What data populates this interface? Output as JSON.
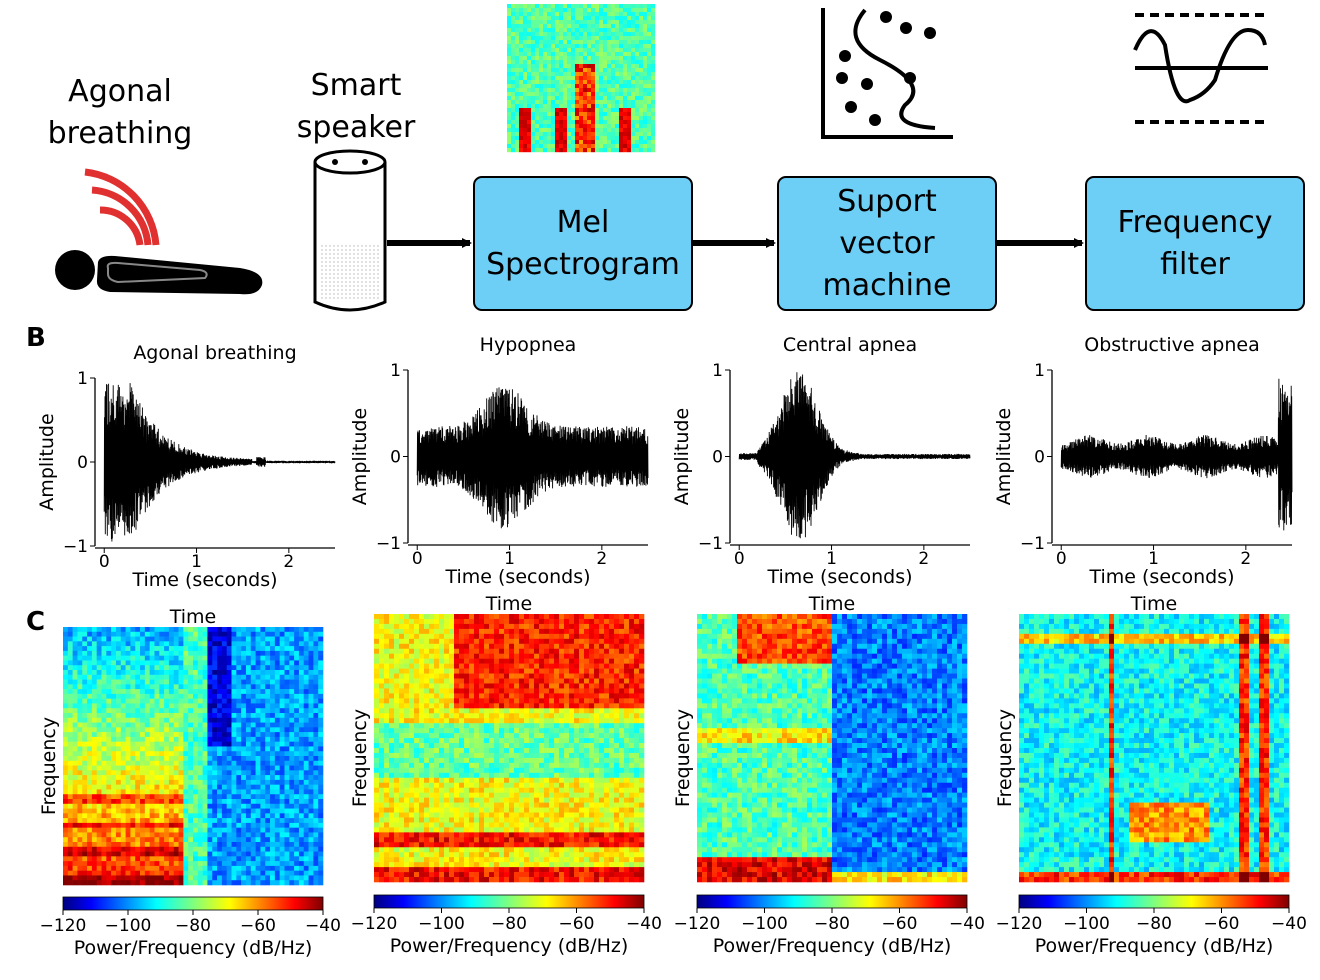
{
  "diagram": {
    "subject_label": [
      "Agonal",
      "breathing"
    ],
    "device_label": [
      "Smart",
      "speaker"
    ],
    "boxes": [
      [
        "Mel",
        "Spectrogram"
      ],
      [
        "Suport",
        "vector",
        "machine"
      ],
      [
        "Frequency",
        "filter"
      ]
    ]
  },
  "panel_labels": [
    "B",
    "C"
  ],
  "waveforms": [
    {
      "title": "Agonal breathing",
      "xlabel": "Time (seconds)",
      "ylabel": "Amplitude",
      "xlim": [
        -0.1,
        2.5
      ],
      "ylim": [
        -1,
        1
      ],
      "xticks": [
        0,
        1,
        2
      ],
      "yticks": [
        {
          "value": -1,
          "label": "−1"
        },
        0,
        1
      ]
    },
    {
      "title": "Hypopnea",
      "xlabel": "Time (seconds)",
      "ylabel": "Amplitude",
      "xlim": [
        -0.1,
        2.5
      ],
      "ylim": [
        -1,
        1
      ],
      "xticks": [
        0,
        1,
        2
      ],
      "yticks": [
        {
          "value": -1,
          "label": "−1"
        },
        0,
        1
      ]
    },
    {
      "title": "Central apnea",
      "xlabel": "Time (seconds)",
      "ylabel": "Amplitude",
      "xlim": [
        -0.1,
        2.5
      ],
      "ylim": [
        -1,
        1
      ],
      "xticks": [
        0,
        1,
        2
      ],
      "yticks": [
        {
          "value": -1,
          "label": "−1"
        },
        0,
        1
      ]
    },
    {
      "title": "Obstructive apnea",
      "xlabel": "Time (seconds)",
      "ylabel": "Amplitude",
      "xlim": [
        -0.1,
        2.5
      ],
      "ylim": [
        -1,
        1
      ],
      "xticks": [
        0,
        1,
        2
      ],
      "yticks": [
        {
          "value": -1,
          "label": "−1"
        },
        0,
        1
      ]
    }
  ],
  "spectrograms": [
    {
      "title": "Time",
      "ylabel": "Frequency",
      "colorbar_label": "Power/Frequency (dB/Hz)",
      "colorbar_lim": [
        -120,
        -40
      ],
      "colorbar_ticks": [
        {
          "value": -120,
          "label": "−120"
        },
        {
          "value": -100,
          "label": "−100"
        },
        {
          "value": -80,
          "label": "−80"
        },
        {
          "value": -60,
          "label": "−60"
        },
        {
          "value": -40,
          "label": "−40"
        }
      ]
    },
    {
      "title": "Time",
      "ylabel": "Frequency",
      "colorbar_label": "Power/Frequency (dB/Hz)",
      "colorbar_lim": [
        -120,
        -40
      ],
      "colorbar_ticks": [
        {
          "value": -120,
          "label": "−120"
        },
        {
          "value": -100,
          "label": "−100"
        },
        {
          "value": -80,
          "label": "−80"
        },
        {
          "value": -60,
          "label": "−60"
        },
        {
          "value": -40,
          "label": "−40"
        }
      ]
    },
    {
      "title": "Time",
      "ylabel": "Frequency",
      "colorbar_label": "Power/Frequency (dB/Hz)",
      "colorbar_lim": [
        -120,
        -40
      ],
      "colorbar_ticks": [
        {
          "value": -120,
          "label": "−120"
        },
        {
          "value": -100,
          "label": "−100"
        },
        {
          "value": -80,
          "label": "−80"
        },
        {
          "value": -60,
          "label": "−60"
        },
        {
          "value": -40,
          "label": "−40"
        }
      ]
    },
    {
      "title": "Time",
      "ylabel": "Frequency",
      "colorbar_label": "Power/Frequency (dB/Hz)",
      "colorbar_lim": [
        -120,
        -40
      ],
      "colorbar_ticks": [
        {
          "value": -120,
          "label": "−120"
        },
        {
          "value": -100,
          "label": "−100"
        },
        {
          "value": -80,
          "label": "−80"
        },
        {
          "value": -60,
          "label": "−60"
        },
        {
          "value": -40,
          "label": "−40"
        }
      ]
    }
  ]
}
